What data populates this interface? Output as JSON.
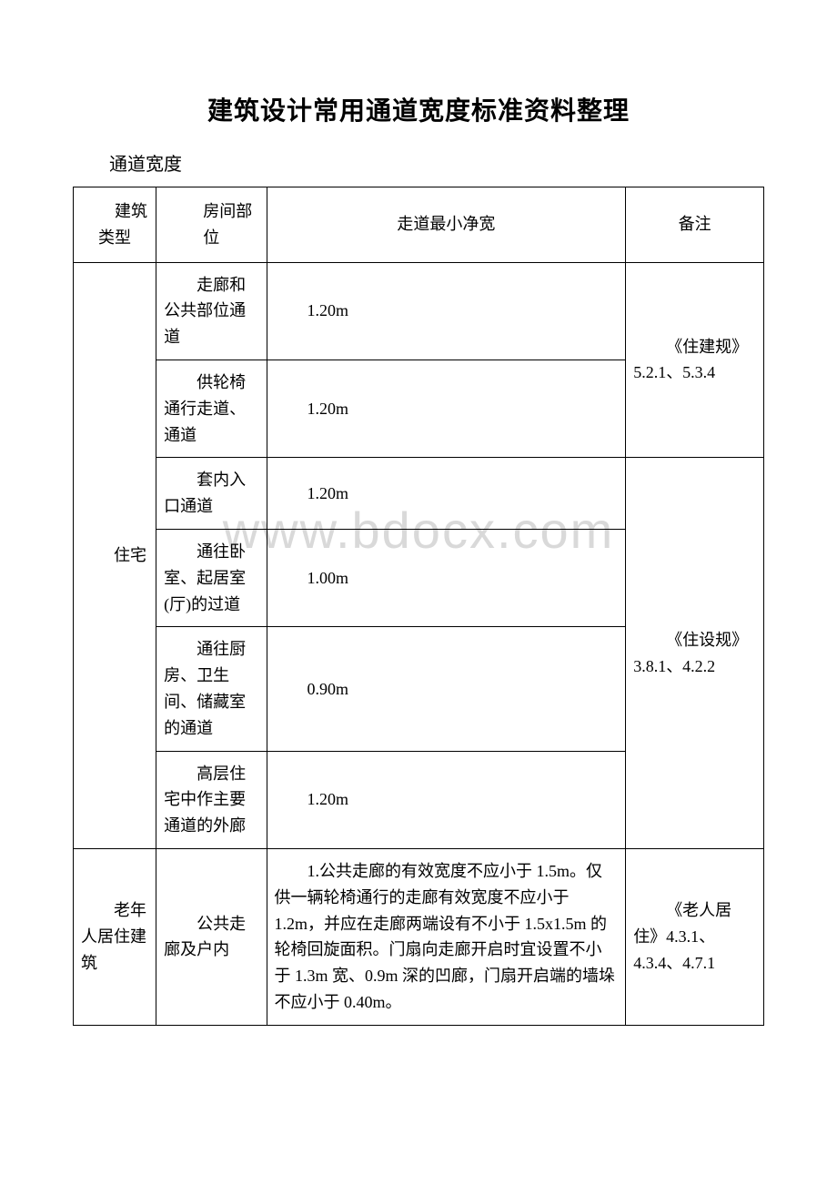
{
  "watermark": "www.bdocx.com",
  "title": "建筑设计常用通道宽度标准资料整理",
  "subtitle": "通道宽度",
  "header": {
    "col1": "建筑类型",
    "col2": "房间部位",
    "col3": "走道最小净宽",
    "col4": "备注"
  },
  "rows": [
    {
      "c1": "住宅",
      "c1_rowspan": 6,
      "c2": "走廊和公共部位通道",
      "c3": "1.20m",
      "c4": "《住建规》5.2.1、5.3.4",
      "c4_rowspan": 2
    },
    {
      "c2": "供轮椅通行走道、通道",
      "c3": "1.20m"
    },
    {
      "c2": "套内入口通道",
      "c3": "1.20m",
      "c4": "《住设规》3.8.1、4.2.2",
      "c4_rowspan": 4
    },
    {
      "c2": "通往卧室、起居室(厅)的过道",
      "c3": "1.00m"
    },
    {
      "c2": "通往厨房、卫生间、储藏室的通道",
      "c3": "0.90m"
    },
    {
      "c2": "高层住宅中作主要通道的外廊",
      "c3": "1.20m"
    },
    {
      "c1": "老年人居住建筑",
      "c2": "公共走廊及户内",
      "c3": "1.公共走廊的有效宽度不应小于 1.5m。仅供一辆轮椅通行的走廊有效宽度不应小于 1.2m，并应在走廊两端设有不小于 1.5x1.5m 的轮椅回旋面积。门扇向走廊开启时宜设置不小于 1.3m 宽、0.9m 深的凹廊，门扇开启端的墙垛不应小于 0.40m。",
      "c4": "《老人居住》4.3.1、4.3.4、4.7.1"
    }
  ],
  "style": {
    "background": "#ffffff",
    "text_color": "#000000",
    "border_color": "#000000",
    "watermark_color": "#d9d9d9",
    "title_fontsize": 28,
    "body_fontsize": 18,
    "subtitle_fontsize": 20
  }
}
